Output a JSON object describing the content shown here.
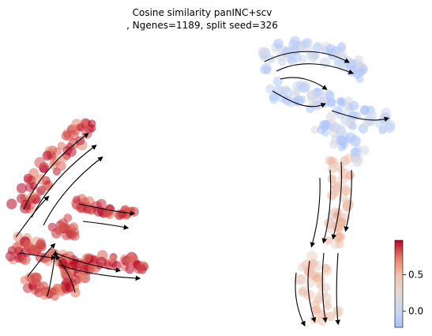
{
  "chart_data": {
    "type": "scatter",
    "title_line1": "Cosine similarity panINC+scv",
    "title_line2": ", Ngenes=1189, split seed=326",
    "xlabel": "",
    "ylabel": "",
    "grid": false,
    "axes_visible": false,
    "overlay": "velocity streamlines with arrowheads",
    "colormap": {
      "name": "coolwarm",
      "low_color": "#a9c3fb",
      "mid_color": "#e6d8d1",
      "high_color": "#b40426",
      "range": [
        -0.22,
        0.97
      ],
      "tick_values": [
        0.0,
        0.5
      ],
      "tick_labels": [
        "0.0",
        "0.5"
      ]
    },
    "clusters": [
      {
        "id": "left-cluster",
        "description": "left trajectory",
        "dominant_value": 0.85
      },
      {
        "id": "upper-right-cluster",
        "description": "upper right blob",
        "dominant_value": -0.05
      },
      {
        "id": "lower-right-cluster",
        "description": "lower right stem",
        "dominant_value": 0.45
      }
    ]
  }
}
